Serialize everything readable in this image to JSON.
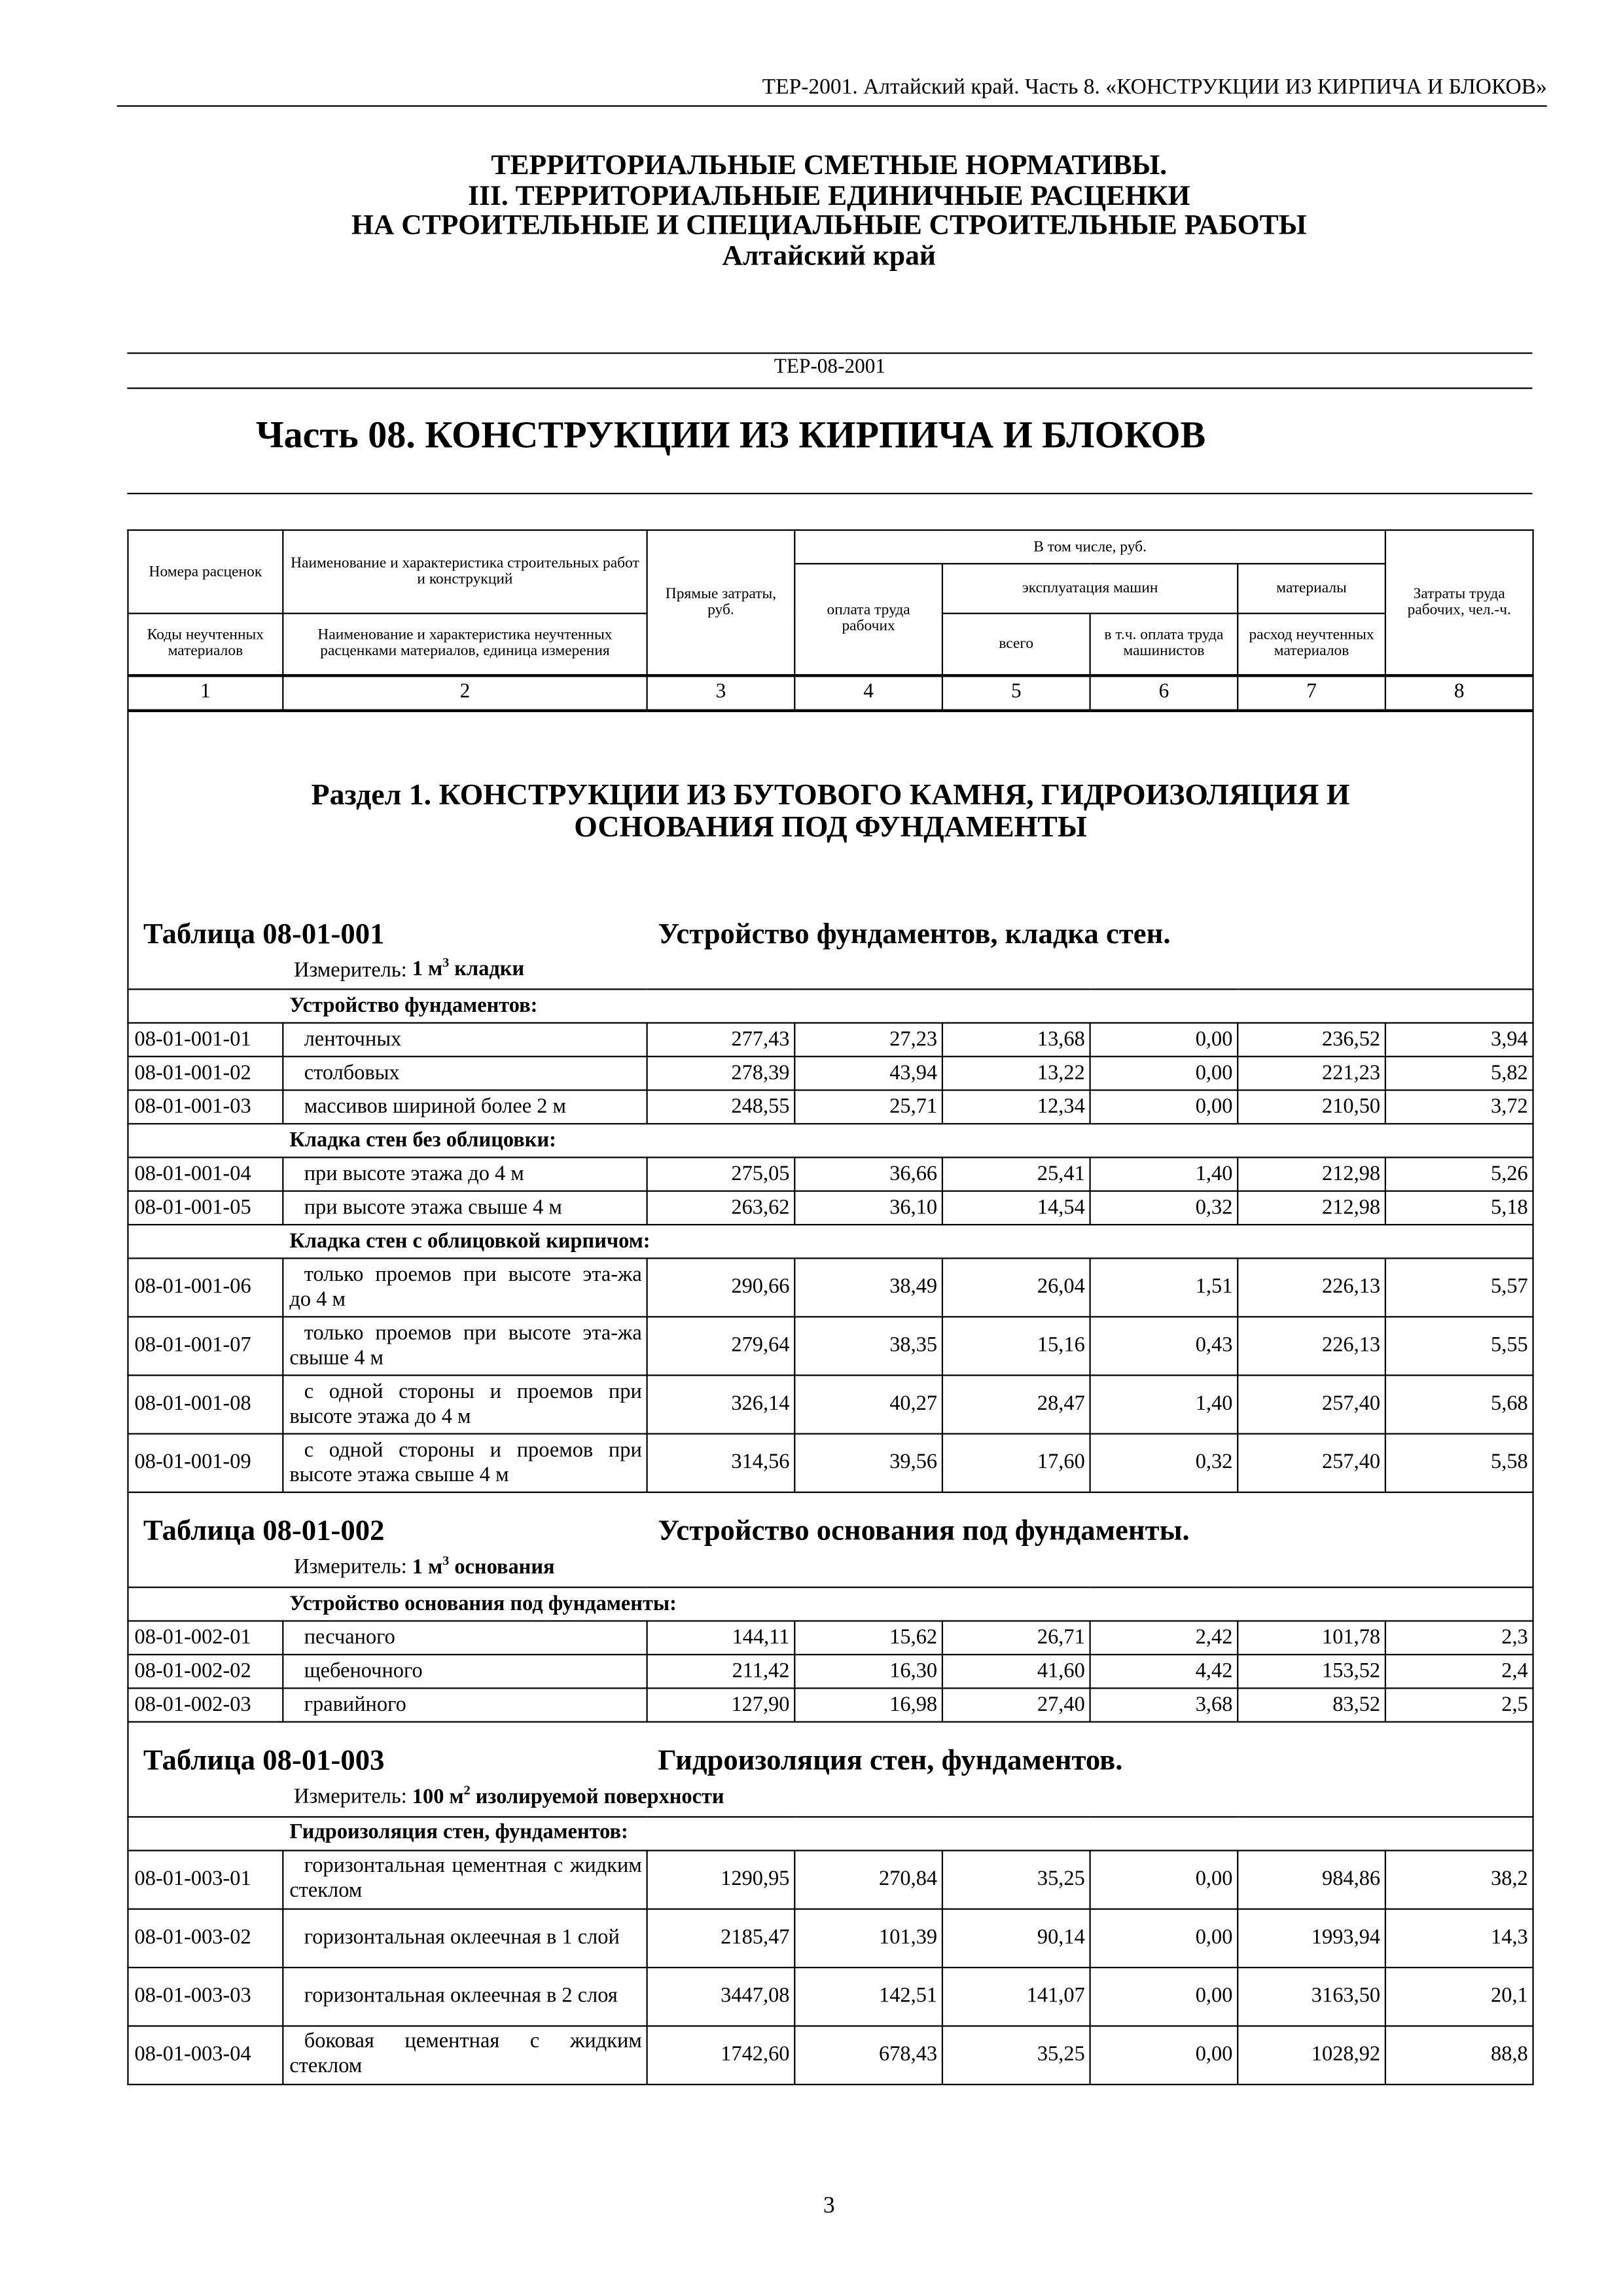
{
  "running_header": "ТЕР-2001. Алтайский край. Часть 8. «КОНСТРУКЦИИ ИЗ КИРПИЧА И БЛОКОВ»",
  "title_lines": [
    "ТЕРРИТОРИАЛЬНЫЕ СМЕТНЫЕ НОРМАТИВЫ.",
    "III. ТЕРРИТОРИАЛЬНЫЕ ЕДИНИЧНЫЕ РАСЦЕНКИ",
    "НА СТРОИТЕЛЬНЫЕ И СПЕЦИАЛЬНЫЕ СТРОИТЕЛЬНЫЕ РАБОТЫ",
    "Алтайский край"
  ],
  "doc_code": "ТЕР-08-2001",
  "part_title": "Часть 08. КОНСТРУКЦИИ ИЗ КИРПИЧА И БЛОКОВ",
  "header": {
    "col1_top": "Номера расценок",
    "col1_bottom": "Коды неучтенных материалов",
    "col2_top": "Наименование и характеристика строительных работ и конструкций",
    "col2_bottom": "Наименование и характеристика неучтенных расценками материалов, единица измерения",
    "col3": "Прямые затраты, руб.",
    "incl": "В том числе, руб.",
    "col4": "оплата труда рабочих",
    "machines": "эксплуатация машин",
    "materials": "материалы",
    "col5": "всего",
    "col6": "в т.ч. оплата труда машинистов",
    "col7": "расход неучтенных материалов",
    "col8": "Затраты труда рабочих, чел.-ч.",
    "numbers": [
      "1",
      "2",
      "3",
      "4",
      "5",
      "6",
      "7",
      "8"
    ]
  },
  "blocks": [
    {
      "kind": "caption",
      "razdel": "Раздел 1. КОНСТРУКЦИИ ИЗ БУТОВОГО КАМНЯ, ГИДРОИЗОЛЯЦИЯ И ОСНОВАНИЯ ПОД ФУНДАМЕНТЫ",
      "table_no": "Таблица 08-01-001",
      "table_title": "Устройство фундаментов, кладка стен.",
      "meter_label": "Измеритель:",
      "meter_value": "1 м",
      "meter_sup": "3",
      "meter_unit": "кладки"
    },
    {
      "kind": "group",
      "label": "Устройство фундаментов:"
    },
    {
      "kind": "row",
      "cells": [
        "08-01-001-01",
        "ленточных",
        "277,43",
        "27,23",
        "13,68",
        "0,00",
        "236,52",
        "3,94"
      ]
    },
    {
      "kind": "row",
      "cells": [
        "08-01-001-02",
        "столбовых",
        "278,39",
        "43,94",
        "13,22",
        "0,00",
        "221,23",
        "5,82"
      ]
    },
    {
      "kind": "row",
      "cells": [
        "08-01-001-03",
        "массивов шириной более 2 м",
        "248,55",
        "25,71",
        "12,34",
        "0,00",
        "210,50",
        "3,72"
      ]
    },
    {
      "kind": "group",
      "label": "Кладка стен без облицовки:"
    },
    {
      "kind": "row",
      "cells": [
        "08-01-001-04",
        "при высоте этажа до 4 м",
        "275,05",
        "36,66",
        "25,41",
        "1,40",
        "212,98",
        "5,26"
      ]
    },
    {
      "kind": "row",
      "cells": [
        "08-01-001-05",
        "при высоте этажа свыше 4 м",
        "263,62",
        "36,10",
        "14,54",
        "0,32",
        "212,98",
        "5,18"
      ]
    },
    {
      "kind": "group",
      "label": "Кладка стен с облицовкой кирпичом:"
    },
    {
      "kind": "tall",
      "cells": [
        "08-01-001-06",
        "только проемов при высоте эта-жа до 4 м",
        "290,66",
        "38,49",
        "26,04",
        "1,51",
        "226,13",
        "5,57"
      ]
    },
    {
      "kind": "tall",
      "cells": [
        "08-01-001-07",
        "только проемов при высоте эта-жа свыше 4 м",
        "279,64",
        "38,35",
        "15,16",
        "0,43",
        "226,13",
        "5,55"
      ]
    },
    {
      "kind": "tall",
      "cells": [
        "08-01-001-08",
        "с одной стороны и проемов при высоте этажа до 4 м",
        "326,14",
        "40,27",
        "28,47",
        "1,40",
        "257,40",
        "5,68"
      ]
    },
    {
      "kind": "tall",
      "cells": [
        "08-01-001-09",
        "с одной стороны и проемов при высоте этажа свыше 4 м",
        "314,56",
        "39,56",
        "17,60",
        "0,32",
        "257,40",
        "5,58"
      ]
    },
    {
      "kind": "caption",
      "table_no": "Таблица 08-01-002",
      "table_title": "Устройство основания под фундаменты.",
      "meter_label": "Измеритель:",
      "meter_value": "1 м",
      "meter_sup": "3",
      "meter_unit": "основания"
    },
    {
      "kind": "group",
      "label": "Устройство основания под фундаменты:"
    },
    {
      "kind": "row",
      "cells": [
        "08-01-002-01",
        "песчаного",
        "144,11",
        "15,62",
        "26,71",
        "2,42",
        "101,78",
        "2,3"
      ]
    },
    {
      "kind": "row",
      "cells": [
        "08-01-002-02",
        "щебеночного",
        "211,42",
        "16,30",
        "41,60",
        "4,42",
        "153,52",
        "2,4"
      ]
    },
    {
      "kind": "row",
      "cells": [
        "08-01-002-03",
        "гравийного",
        "127,90",
        "16,98",
        "27,40",
        "3,68",
        "83,52",
        "2,5"
      ]
    },
    {
      "kind": "caption",
      "table_no": "Таблица 08-01-003",
      "table_title": "Гидроизоляция стен, фундаментов.",
      "meter_label": "Измеритель:",
      "meter_value": "100 м",
      "meter_sup": "2",
      "meter_unit": "изолируемой поверхности"
    },
    {
      "kind": "group",
      "label": "Гидроизоляция стен, фундаментов:"
    },
    {
      "kind": "tall",
      "cells": [
        "08-01-003-01",
        "горизонтальная цементная с жидким стеклом",
        "1290,95",
        "270,84",
        "35,25",
        "0,00",
        "984,86",
        "38,2"
      ]
    },
    {
      "kind": "tall",
      "cells": [
        "08-01-003-02",
        "горизонтальная оклеечная в 1 слой",
        "2185,47",
        "101,39",
        "90,14",
        "0,00",
        "1993,94",
        "14,3"
      ]
    },
    {
      "kind": "tall",
      "cells": [
        "08-01-003-03",
        "горизонтальная оклеечная в 2 слоя",
        "3447,08",
        "142,51",
        "141,07",
        "0,00",
        "3163,50",
        "20,1"
      ]
    },
    {
      "kind": "tall",
      "cells": [
        "08-01-003-04",
        "боковая цементная с жидким стеклом",
        "1742,60",
        "678,43",
        "35,25",
        "0,00",
        "1028,92",
        "88,8"
      ]
    }
  ],
  "page_number": "3"
}
